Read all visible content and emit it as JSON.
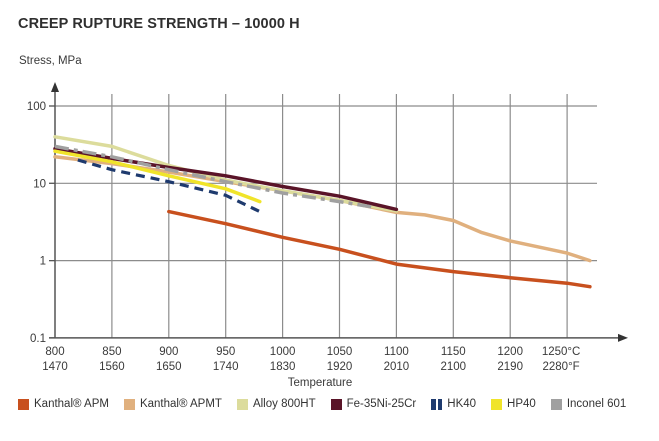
{
  "chart_data": {
    "type": "line",
    "title": "CREEP RUPTURE STRENGTH – 10000 H",
    "ylabel": "Stress, MPa",
    "xlabel": "Temperature",
    "yscale": "log",
    "ylim": [
      0.1,
      100
    ],
    "xlim": [
      800,
      1270
    ],
    "y_ticks": [
      {
        "value": 100,
        "label": "100"
      },
      {
        "value": 10,
        "label": "10"
      },
      {
        "value": 1,
        "label": "1"
      },
      {
        "value": 0.1,
        "label": "0.1"
      }
    ],
    "x_ticks": [
      {
        "value": 800,
        "label_c": "800",
        "label_f": "1470"
      },
      {
        "value": 850,
        "label_c": "850",
        "label_f": "1560"
      },
      {
        "value": 900,
        "label_c": "900",
        "label_f": "1650"
      },
      {
        "value": 950,
        "label_c": "950",
        "label_f": "1740"
      },
      {
        "value": 1000,
        "label_c": "1000",
        "label_f": "1830"
      },
      {
        "value": 1050,
        "label_c": "1050",
        "label_f": "1920"
      },
      {
        "value": 1100,
        "label_c": "1100",
        "label_f": "2010"
      },
      {
        "value": 1150,
        "label_c": "1150",
        "label_f": "2100"
      },
      {
        "value": 1200,
        "label_c": "1200",
        "label_f": "2190"
      },
      {
        "value": 1250,
        "label_c": "1250°C",
        "label_f": "2280°F"
      }
    ],
    "grid": true,
    "legend_position": "bottom",
    "series": [
      {
        "name": "Kanthal® APM",
        "color": "#c8501e",
        "style": "solid",
        "x": [
          900,
          950,
          1000,
          1050,
          1100,
          1150,
          1200,
          1250,
          1270
        ],
        "values": [
          4.3,
          3.0,
          2.0,
          1.4,
          0.9,
          0.72,
          0.6,
          0.51,
          0.46
        ]
      },
      {
        "name": "Kanthal® APMT",
        "color": "#e0b07e",
        "style": "solid",
        "x": [
          800,
          850,
          900,
          950,
          1000,
          1050,
          1100,
          1125,
          1150,
          1175,
          1200,
          1250,
          1270
        ],
        "values": [
          22,
          18,
          14,
          10.5,
          8,
          6,
          4.2,
          3.9,
          3.3,
          2.3,
          1.8,
          1.25,
          1.0
        ]
      },
      {
        "name": "Alloy 800HT",
        "color": "#dcdc9c",
        "style": "solid",
        "x": [
          800,
          850,
          900,
          950,
          1000,
          1050,
          1100
        ],
        "values": [
          40,
          30,
          17,
          11,
          8,
          6,
          4.4
        ]
      },
      {
        "name": "Fe-35Ni-25Cr",
        "color": "#5a1428",
        "style": "solid",
        "x": [
          800,
          850,
          900,
          950,
          1000,
          1050,
          1100
        ],
        "values": [
          28,
          21,
          16,
          12.5,
          9.1,
          6.8,
          4.6
        ]
      },
      {
        "name": "HK40",
        "color": "#1e3a6e",
        "style": "dashed",
        "x": [
          820,
          850,
          900,
          950,
          980
        ],
        "values": [
          20,
          15,
          10.5,
          7,
          4.3
        ]
      },
      {
        "name": "HP40",
        "color": "#f0e42a",
        "style": "solid",
        "x": [
          800,
          850,
          900,
          950,
          980
        ],
        "values": [
          26,
          19,
          12.5,
          8.5,
          5.8
        ]
      },
      {
        "name": "Inconel 601",
        "color": "#a0a0a0",
        "style": "dashdot",
        "x": [
          800,
          850,
          900,
          950,
          1000,
          1050,
          1080
        ],
        "values": [
          30,
          22,
          15,
          10.5,
          7.5,
          5.8,
          4.9
        ]
      }
    ]
  }
}
